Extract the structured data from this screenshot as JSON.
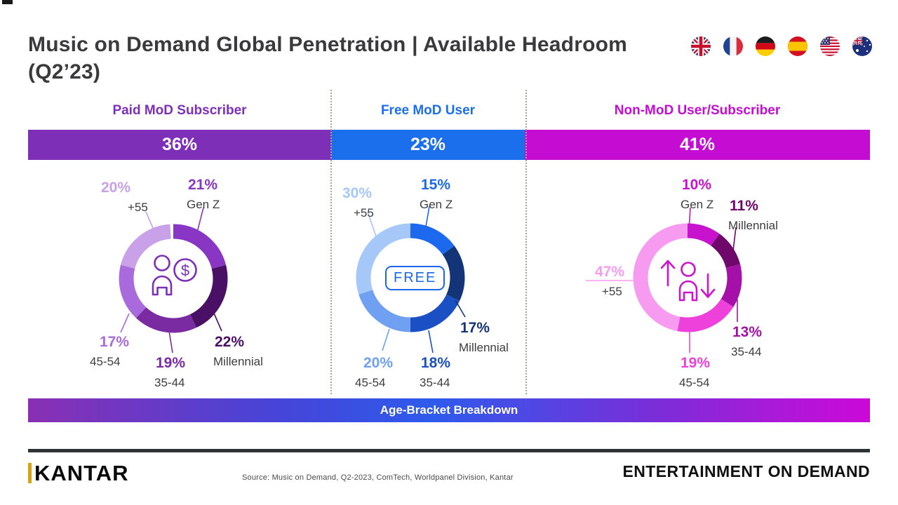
{
  "title": {
    "line1": "Music on Demand Global Penetration | Available Headroom",
    "line2": "(Q2’23)"
  },
  "flags": [
    "united-kingdom",
    "france",
    "germany",
    "spain",
    "usa",
    "australia"
  ],
  "chart_data": {
    "type": "donut-set",
    "title": "Music on Demand Global Penetration | Available Headroom (Q2’23)",
    "band_label": "Age-Bracket Breakdown",
    "age_categories_clockwise": [
      "Gen Z",
      "Millennial",
      "35-44",
      "45-54",
      "+55"
    ],
    "sections": [
      {
        "name": "Paid MoD Subscriber",
        "share": 36,
        "share_label": "36%",
        "accent": "#7d2fb8",
        "center_icon": "person-dollar-icon",
        "slices": [
          {
            "category": "Gen Z",
            "value": 21,
            "label": "21%",
            "color": "#8936c4"
          },
          {
            "category": "Millennial",
            "value": 22,
            "label": "22%",
            "color": "#4a1066"
          },
          {
            "category": "35-44",
            "value": 19,
            "label": "19%",
            "color": "#7b2ba1"
          },
          {
            "category": "45-54",
            "value": 17,
            "label": "17%",
            "color": "#a96bdb"
          },
          {
            "category": "+55",
            "value": 20,
            "label": "20%",
            "color": "#c9a1e8"
          }
        ]
      },
      {
        "name": "Free MoD User",
        "share": 23,
        "share_label": "23%",
        "accent": "#1c6fec",
        "center_icon": "free-badge",
        "center_text": "FREE",
        "slices": [
          {
            "category": "Gen Z",
            "value": 15,
            "label": "15%",
            "color": "#1c69ee"
          },
          {
            "category": "Millennial",
            "value": 17,
            "label": "17%",
            "color": "#133577"
          },
          {
            "category": "35-44",
            "value": 18,
            "label": "18%",
            "color": "#1a50c4"
          },
          {
            "category": "45-54",
            "value": 20,
            "label": "20%",
            "color": "#6fa0f2"
          },
          {
            "category": "+55",
            "value": 30,
            "label": "30%",
            "color": "#a6c8f8"
          }
        ]
      },
      {
        "name": "Non-MoD User/Subscriber",
        "share": 41,
        "share_label": "41%",
        "accent": "#c40cd2",
        "center_icon": "person-up-down-icon",
        "slices": [
          {
            "category": "Gen Z",
            "value": 10,
            "label": "10%",
            "color": "#c713cd"
          },
          {
            "category": "Millennial",
            "value": 11,
            "label": "11%",
            "color": "#70086c"
          },
          {
            "category": "35-44",
            "value": 13,
            "label": "13%",
            "color": "#a511a8"
          },
          {
            "category": "45-54",
            "value": 19,
            "label": "19%",
            "color": "#ee41dc"
          },
          {
            "category": "+55",
            "value": 47,
            "label": "47%",
            "color": "#f79bf0"
          }
        ]
      }
    ]
  },
  "footer": {
    "source": "Source: Music on Demand, Q2-2023, ComTech, Worldpanel Division, Kantar",
    "brand": "KANTAR",
    "tagline": "ENTERTAINMENT ON DEMAND"
  }
}
